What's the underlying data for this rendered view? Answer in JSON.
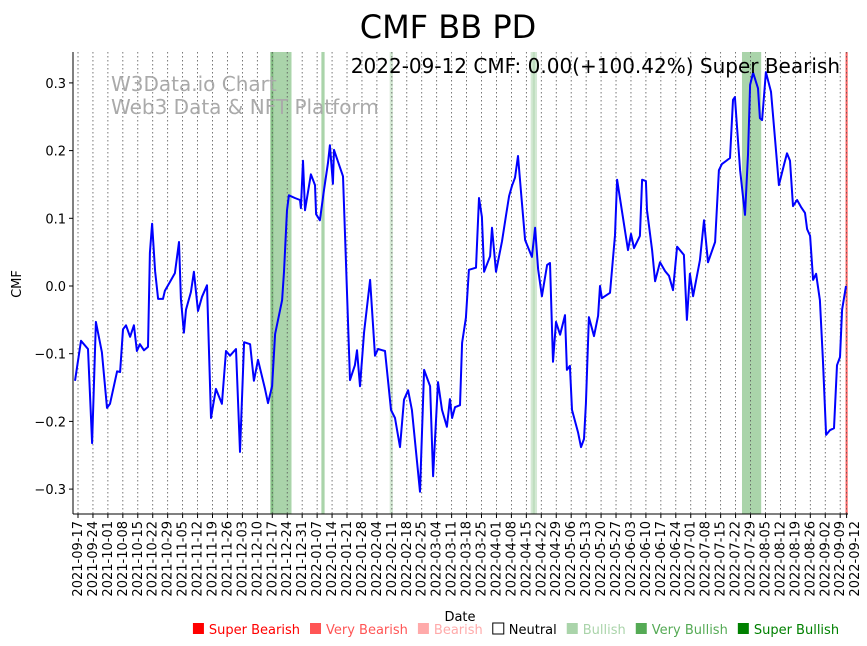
{
  "chart_data": {
    "type": "line",
    "title": "CMF BB PD",
    "annotation": "2022-09-12 CMF: 0.00(+100.42%) Super Bearish",
    "watermark": [
      "W3Data.io Chart",
      "Web3 Data & NFT Platform"
    ],
    "xlabel": "Date",
    "ylabel": "CMF",
    "x_unit": "days since 2021-09-17",
    "xlim": [
      -2,
      361
    ],
    "ylim": [
      -0.335,
      0.345
    ],
    "yticks": [
      -0.3,
      -0.2,
      -0.1,
      0.0,
      0.1,
      0.2,
      0.3
    ],
    "ytick_labels": [
      "−0.3",
      "−0.2",
      "−0.1",
      "0.0",
      "0.1",
      "0.2",
      "0.3"
    ],
    "xtick_days": [
      0,
      7,
      14,
      21,
      28,
      35,
      42,
      49,
      56,
      63,
      70,
      77,
      84,
      91,
      98,
      105,
      112,
      119,
      126,
      133,
      140,
      147,
      154,
      161,
      168,
      175,
      182,
      189,
      196,
      203,
      210,
      217,
      224,
      231,
      238,
      245,
      252,
      259,
      266,
      273,
      280,
      287,
      294,
      301,
      308,
      315,
      322,
      329,
      336,
      343,
      350,
      357,
      360
    ],
    "xtick_labels": [
      "2021-09-17",
      "2021-09-24",
      "2021-10-01",
      "2021-10-08",
      "2021-10-15",
      "2021-10-22",
      "2021-10-29",
      "2021-11-05",
      "2021-11-12",
      "2021-11-19",
      "2021-11-26",
      "2021-12-03",
      "2021-12-10",
      "2021-12-17",
      "2021-12-24",
      "2021-12-31",
      "2022-01-07",
      "2022-01-14",
      "2022-01-21",
      "2022-01-28",
      "2022-02-04",
      "2022-02-11",
      "2022-02-18",
      "2022-02-25",
      "2022-03-04",
      "2022-03-11",
      "2022-03-18",
      "2022-03-25",
      "2022-04-01",
      "2022-04-08",
      "2022-04-15",
      "2022-04-22",
      "2022-04-29",
      "2022-05-06",
      "2022-05-13",
      "2022-05-20",
      "2022-05-27",
      "2022-06-03",
      "2022-06-10",
      "2022-06-17",
      "2022-06-24",
      "2022-07-01",
      "2022-07-08",
      "2022-07-15",
      "2022-07-22",
      "2022-07-29",
      "2022-08-05",
      "2022-08-12",
      "2022-08-19",
      "2022-08-26",
      "2022-09-02",
      "2022-09-09",
      "2022-09-12"
    ],
    "grid": "x-dotted",
    "line_color": "#0000ff",
    "series": [
      {
        "name": "CMF",
        "points": [
          [
            -1.4,
            -0.14
          ],
          [
            1.4,
            -0.081
          ],
          [
            4.7,
            -0.093
          ],
          [
            6.6,
            -0.232
          ],
          [
            8.4,
            -0.053
          ],
          [
            11.2,
            -0.098
          ],
          [
            13.6,
            -0.18
          ],
          [
            15.0,
            -0.174
          ],
          [
            18.3,
            -0.126
          ],
          [
            19.7,
            -0.127
          ],
          [
            21.1,
            -0.064
          ],
          [
            22.5,
            -0.058
          ],
          [
            24.4,
            -0.075
          ],
          [
            26.2,
            -0.058
          ],
          [
            27.6,
            -0.096
          ],
          [
            29.0,
            -0.086
          ],
          [
            30.9,
            -0.095
          ],
          [
            32.8,
            -0.09
          ],
          [
            33.7,
            0.049
          ],
          [
            34.7,
            0.092
          ],
          [
            36.1,
            0.022
          ],
          [
            37.5,
            -0.019
          ],
          [
            39.8,
            -0.019
          ],
          [
            40.7,
            -0.007
          ],
          [
            43.1,
            0.006
          ],
          [
            45.4,
            0.019
          ],
          [
            47.3,
            0.065
          ],
          [
            48.2,
            -0.019
          ],
          [
            49.6,
            -0.069
          ],
          [
            50.6,
            -0.035
          ],
          [
            52.9,
            -0.009
          ],
          [
            54.3,
            0.021
          ],
          [
            56.2,
            -0.037
          ],
          [
            58.1,
            -0.016
          ],
          [
            60.4,
            0.001
          ],
          [
            62.3,
            -0.195
          ],
          [
            64.6,
            -0.152
          ],
          [
            67.4,
            -0.174
          ],
          [
            69.3,
            -0.096
          ],
          [
            71.2,
            -0.103
          ],
          [
            74.0,
            -0.093
          ],
          [
            75.9,
            -0.245
          ],
          [
            77.8,
            -0.083
          ],
          [
            80.6,
            -0.086
          ],
          [
            82.4,
            -0.14
          ],
          [
            84.3,
            -0.109
          ],
          [
            87.6,
            -0.152
          ],
          [
            89.0,
            -0.173
          ],
          [
            90.9,
            -0.148
          ],
          [
            92.3,
            -0.071
          ],
          [
            95.6,
            -0.021
          ],
          [
            96.5,
            0.021
          ],
          [
            97.9,
            0.112
          ],
          [
            98.8,
            0.134
          ],
          [
            101.6,
            0.13
          ],
          [
            104.0,
            0.127
          ],
          [
            104.4,
            0.115
          ],
          [
            105.4,
            0.185
          ],
          [
            106.3,
            0.112
          ],
          [
            109.1,
            0.165
          ],
          [
            111.0,
            0.149
          ],
          [
            111.5,
            0.106
          ],
          [
            113.3,
            0.097
          ],
          [
            115.2,
            0.142
          ],
          [
            117.1,
            0.182
          ],
          [
            118.0,
            0.208
          ],
          [
            119.4,
            0.151
          ],
          [
            119.9,
            0.201
          ],
          [
            124.1,
            0.162
          ],
          [
            125.5,
            0.038
          ],
          [
            127.4,
            -0.139
          ],
          [
            129.7,
            -0.117
          ],
          [
            130.7,
            -0.095
          ],
          [
            132.1,
            -0.148
          ],
          [
            134.0,
            -0.068
          ],
          [
            136.8,
            0.009
          ],
          [
            139.1,
            -0.103
          ],
          [
            140.5,
            -0.093
          ],
          [
            143.8,
            -0.096
          ],
          [
            146.6,
            -0.183
          ],
          [
            148.5,
            -0.195
          ],
          [
            150.8,
            -0.238
          ],
          [
            152.7,
            -0.168
          ],
          [
            154.6,
            -0.154
          ],
          [
            156.4,
            -0.183
          ],
          [
            160.2,
            -0.304
          ],
          [
            162.1,
            -0.124
          ],
          [
            164.9,
            -0.148
          ],
          [
            166.3,
            -0.281
          ],
          [
            168.6,
            -0.142
          ],
          [
            170.5,
            -0.183
          ],
          [
            172.8,
            -0.208
          ],
          [
            174.2,
            -0.167
          ],
          [
            175.2,
            -0.195
          ],
          [
            176.6,
            -0.179
          ],
          [
            178.9,
            -0.176
          ],
          [
            179.9,
            -0.084
          ],
          [
            181.7,
            -0.047
          ],
          [
            183.1,
            0.024
          ],
          [
            186.4,
            0.027
          ],
          [
            187.8,
            0.13
          ],
          [
            189.2,
            0.102
          ],
          [
            190.2,
            0.021
          ],
          [
            193.0,
            0.044
          ],
          [
            193.9,
            0.086
          ],
          [
            195.8,
            0.021
          ],
          [
            198.6,
            0.066
          ],
          [
            200.5,
            0.105
          ],
          [
            201.9,
            0.133
          ],
          [
            203.3,
            0.148
          ],
          [
            204.7,
            0.16
          ],
          [
            206.1,
            0.192
          ],
          [
            207.5,
            0.139
          ],
          [
            209.4,
            0.068
          ],
          [
            212.6,
            0.043
          ],
          [
            214.1,
            0.086
          ],
          [
            215.5,
            0.025
          ],
          [
            217.3,
            -0.015
          ],
          [
            219.7,
            0.031
          ],
          [
            221.1,
            0.034
          ],
          [
            222.5,
            -0.112
          ],
          [
            223.9,
            -0.053
          ],
          [
            225.8,
            -0.072
          ],
          [
            228.1,
            -0.043
          ],
          [
            229.0,
            -0.124
          ],
          [
            230.4,
            -0.118
          ],
          [
            231.4,
            -0.183
          ],
          [
            234.2,
            -0.216
          ],
          [
            235.6,
            -0.238
          ],
          [
            237.0,
            -0.226
          ],
          [
            237.9,
            -0.174
          ],
          [
            239.3,
            -0.046
          ],
          [
            241.7,
            -0.074
          ],
          [
            243.6,
            -0.044
          ],
          [
            244.5,
            0.0
          ],
          [
            245.4,
            -0.018
          ],
          [
            249.2,
            -0.01
          ],
          [
            250.1,
            0.024
          ],
          [
            251.5,
            0.075
          ],
          [
            252.5,
            0.157
          ],
          [
            257.6,
            0.053
          ],
          [
            259.0,
            0.077
          ],
          [
            260.4,
            0.056
          ],
          [
            263.2,
            0.074
          ],
          [
            264.2,
            0.157
          ],
          [
            266.0,
            0.155
          ],
          [
            266.5,
            0.112
          ],
          [
            268.9,
            0.053
          ],
          [
            270.3,
            0.007
          ],
          [
            272.6,
            0.035
          ],
          [
            275.0,
            0.022
          ],
          [
            276.8,
            0.015
          ],
          [
            278.7,
            -0.006
          ],
          [
            280.6,
            0.058
          ],
          [
            283.8,
            0.046
          ],
          [
            285.2,
            -0.05
          ],
          [
            286.6,
            0.018
          ],
          [
            288.1,
            -0.015
          ],
          [
            291.3,
            0.038
          ],
          [
            293.2,
            0.097
          ],
          [
            295.1,
            0.035
          ],
          [
            298.4,
            0.065
          ],
          [
            300.2,
            0.171
          ],
          [
            301.6,
            0.18
          ],
          [
            305.4,
            0.189
          ],
          [
            306.8,
            0.275
          ],
          [
            307.7,
            0.279
          ],
          [
            310.1,
            0.171
          ],
          [
            312.4,
            0.105
          ],
          [
            313.8,
            0.194
          ],
          [
            314.8,
            0.297
          ],
          [
            316.2,
            0.315
          ],
          [
            318.5,
            0.292
          ],
          [
            319.4,
            0.248
          ],
          [
            320.4,
            0.245
          ],
          [
            322.2,
            0.316
          ],
          [
            324.6,
            0.287
          ],
          [
            326.5,
            0.216
          ],
          [
            328.3,
            0.149
          ],
          [
            330.7,
            0.179
          ],
          [
            332.1,
            0.196
          ],
          [
            333.5,
            0.185
          ],
          [
            334.9,
            0.118
          ],
          [
            336.8,
            0.127
          ],
          [
            338.6,
            0.117
          ],
          [
            340.5,
            0.108
          ],
          [
            341.5,
            0.084
          ],
          [
            342.9,
            0.074
          ],
          [
            344.3,
            0.009
          ],
          [
            345.7,
            0.018
          ],
          [
            347.5,
            -0.021
          ],
          [
            348.9,
            -0.109
          ],
          [
            350.4,
            -0.22
          ],
          [
            352.2,
            -0.213
          ],
          [
            354.1,
            -0.21
          ],
          [
            355.5,
            -0.117
          ],
          [
            356.9,
            -0.105
          ],
          [
            357.9,
            -0.035
          ],
          [
            359.7,
            0.0
          ]
        ]
      }
    ],
    "signal_bands": [
      {
        "from": 90,
        "to": 100,
        "signal": "Very Bullish"
      },
      {
        "from": 90.5,
        "to": 91.5,
        "signal": "Very Bullish"
      },
      {
        "from": 114,
        "to": 115.5,
        "signal": "Very Bullish"
      },
      {
        "from": 146,
        "to": 147.5,
        "signal": "Bullish"
      },
      {
        "from": 212,
        "to": 215,
        "signal": "Bullish"
      },
      {
        "from": 213,
        "to": 214,
        "signal": "Bullish"
      },
      {
        "from": 311,
        "to": 320,
        "signal": "Very Bullish"
      },
      {
        "from": 359.5,
        "to": 360.5,
        "signal": "Super Bearish"
      }
    ],
    "legend_position": "bottom",
    "legend": [
      {
        "label": "Super Bearish",
        "color": "#ff0000"
      },
      {
        "label": "Very Bearish",
        "color": "#ff5555"
      },
      {
        "label": "Bearish",
        "color": "#ffaaaa"
      },
      {
        "label": "Neutral",
        "color": "#ffffff"
      },
      {
        "label": "Bullish",
        "color": "#aad4aa"
      },
      {
        "label": "Very Bullish",
        "color": "#55aa55"
      },
      {
        "label": "Super Bullish",
        "color": "#008000"
      }
    ]
  }
}
